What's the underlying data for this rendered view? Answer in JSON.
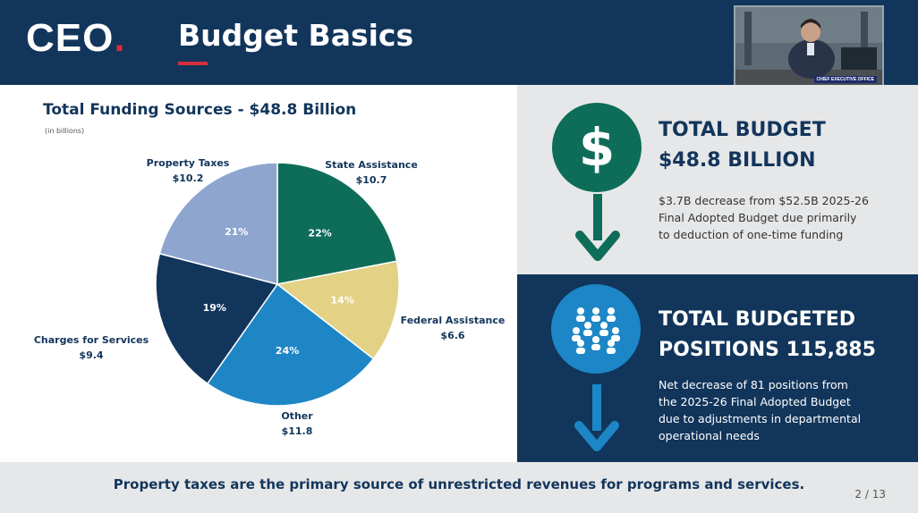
{
  "header": {
    "logo_text": "CEO",
    "logo_dot": ".",
    "title": "Budget Basics",
    "video_caption": "CHIEF EXECUTIVE OFFICE"
  },
  "chart_data": {
    "type": "pie",
    "title": "Total Funding Sources - $48.8 Billion",
    "subtitle": "(in billions)",
    "slices": [
      {
        "label": "State Assistance",
        "value": 10.7,
        "value_label": "$10.7",
        "percent_label": "22%",
        "color": "#0e6d58",
        "text_color": "#ffffff"
      },
      {
        "label": "Federal Assistance",
        "value": 6.6,
        "value_label": "$6.6",
        "percent_label": "14%",
        "color": "#e3d186",
        "text_color": "#ffffff"
      },
      {
        "label": "Other",
        "value": 11.8,
        "value_label": "$11.8",
        "percent_label": "24%",
        "color": "#1f86c6",
        "text_color": "#ffffff"
      },
      {
        "label": "Charges for Services",
        "value": 9.4,
        "value_label": "$9.4",
        "percent_label": "19%",
        "color": "#12355b",
        "text_color": "#ffffff"
      },
      {
        "label": "Property Taxes",
        "value": 10.2,
        "value_label": "$10.2",
        "percent_label": "21%",
        "color": "#8ea6cf",
        "text_color": "#ffffff"
      }
    ]
  },
  "budget": {
    "title_line1": "TOTAL BUDGET",
    "title_line2": "$48.8 BILLION",
    "description": "$3.7B decrease from $52.5B 2025-26\n Final Adopted Budget due primarily\n to deduction of one-time funding"
  },
  "positions": {
    "title_line1": "TOTAL BUDGETED",
    "title_line2": "POSITIONS 115,885",
    "description": "Net decrease of 81 positions from\nthe 2025-26 Final Adopted Budget\ndue to  adjustments in departmental\noperational needs"
  },
  "footer": {
    "text": "Property taxes are the primary source of unrestricted revenues for programs and services.",
    "page": "2 / 13"
  },
  "colors": {
    "navy": "#12355b",
    "accent_red": "#d32f3a",
    "green": "#0e6d58",
    "blue": "#1d86c6",
    "light_gray": "#e6e7e8"
  },
  "icons": [
    "dollar-icon",
    "people-group-icon",
    "down-arrow-icon"
  ]
}
